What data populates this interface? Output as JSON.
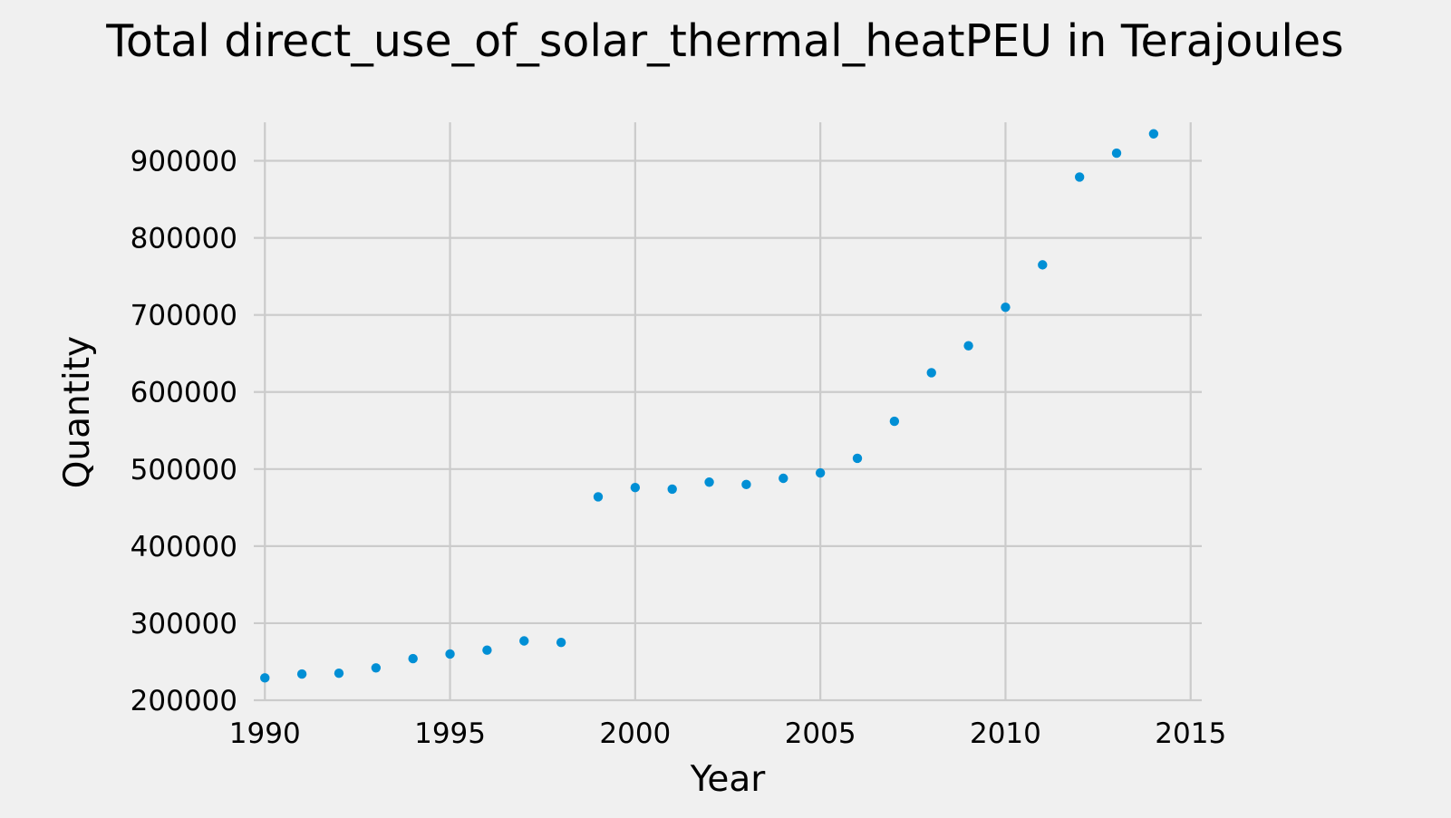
{
  "chart_data": {
    "type": "scatter",
    "title": "Total direct_use_of_solar_thermal_heatPEU in Terajoules",
    "xlabel": "Year",
    "ylabel": "Quantity",
    "xlim": [
      1989.7,
      2015.3
    ],
    "ylim": [
      200000,
      950000
    ],
    "grid": true,
    "legend": "none",
    "x_ticks": [
      "1990",
      "1995",
      "2000",
      "2005",
      "2010",
      "2015"
    ],
    "y_ticks": [
      "200000",
      "300000",
      "400000",
      "500000",
      "600000",
      "700000",
      "800000",
      "900000"
    ],
    "x": [
      1990,
      1991,
      1992,
      1993,
      1994,
      1995,
      1996,
      1997,
      1998,
      1999,
      2000,
      2001,
      2002,
      2003,
      2004,
      2005,
      2006,
      2007,
      2008,
      2009,
      2010,
      2011,
      2012,
      2013,
      2014
    ],
    "y": [
      229000,
      234000,
      235000,
      242000,
      254000,
      260000,
      265000,
      277000,
      275000,
      464000,
      476000,
      474000,
      483000,
      480000,
      488000,
      495000,
      514000,
      562000,
      625000,
      660000,
      710000,
      765000,
      879000,
      910000,
      935000
    ],
    "colors": {
      "background": "#f0f0f0",
      "grid": "#cbcbcb",
      "point": "#008fd5"
    }
  }
}
